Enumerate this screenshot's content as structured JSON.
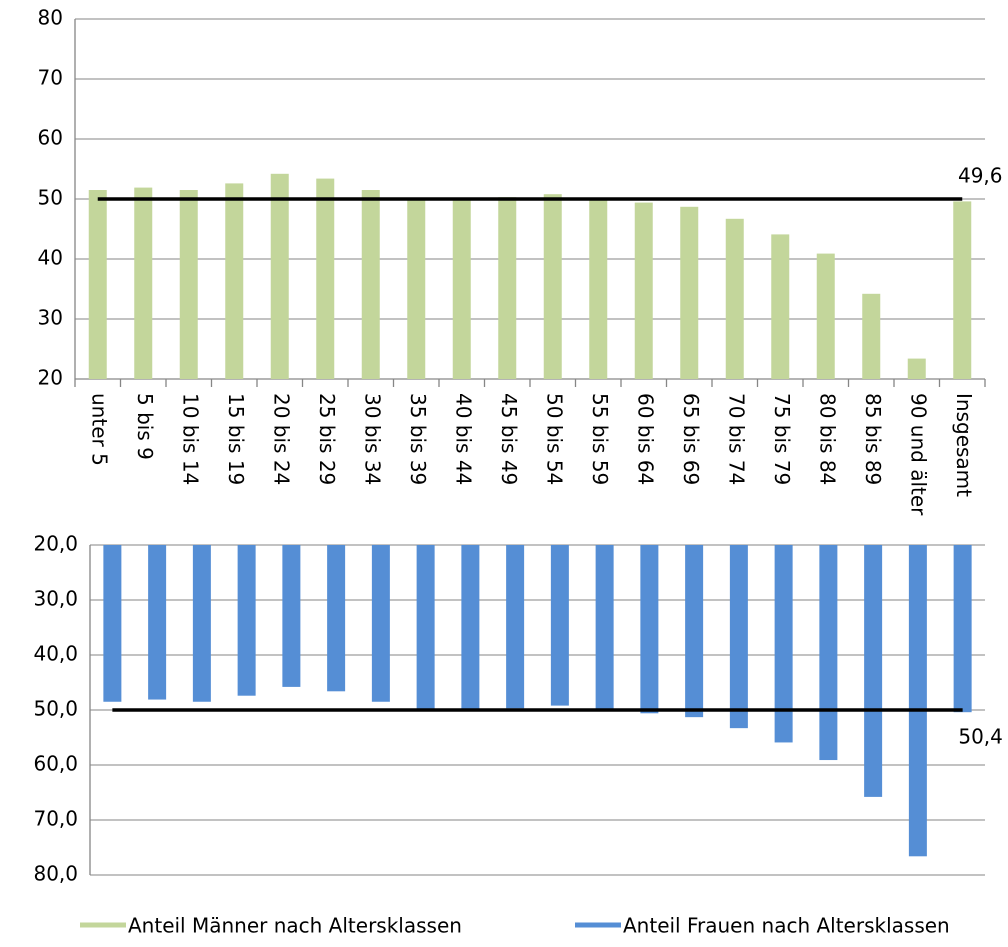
{
  "chart_data": {
    "type": "mirrored_bar",
    "categories": [
      "unter 5",
      "5 bis 9",
      "10 bis 14",
      "15 bis 19",
      "20 bis 24",
      "25 bis 29",
      "30 bis 34",
      "35 bis 39",
      "40 bis 44",
      "45 bis 49",
      "50 bis 54",
      "55 bis 59",
      "60 bis 64",
      "65 bis 69",
      "70 bis 74",
      "75 bis 79",
      "80 bis 84",
      "85 bis 89",
      "90 und älter",
      "Insgesamt"
    ],
    "series": [
      {
        "name": "Anteil Männer nach Altersklassen",
        "color": "#c3d69b",
        "values": [
          51.5,
          51.9,
          51.5,
          52.6,
          54.2,
          53.4,
          51.5,
          50.1,
          50.2,
          50.3,
          50.8,
          50.1,
          49.4,
          48.7,
          46.7,
          44.1,
          40.9,
          34.2,
          23.4,
          49.6
        ],
        "value_labels": [
          null,
          null,
          null,
          null,
          null,
          null,
          null,
          null,
          null,
          null,
          null,
          null,
          null,
          null,
          null,
          null,
          null,
          null,
          null,
          "49,6"
        ]
      },
      {
        "name": "Anteil Frauen nach Altersklassen",
        "color": "#558ed5",
        "axis": "y2",
        "values": [
          48.5,
          48.1,
          48.5,
          47.4,
          45.8,
          46.6,
          48.5,
          49.9,
          49.8,
          49.7,
          49.2,
          49.9,
          50.6,
          51.3,
          53.3,
          55.9,
          59.1,
          65.8,
          76.6,
          50.4
        ],
        "value_labels": [
          null,
          null,
          null,
          null,
          null,
          null,
          null,
          null,
          null,
          null,
          null,
          null,
          null,
          null,
          null,
          null,
          null,
          null,
          null,
          "50,4"
        ]
      }
    ],
    "ylim": [
      20,
      80
    ],
    "yticks": [
      20,
      30,
      40,
      50,
      60,
      70,
      80
    ],
    "y2lim": [
      20,
      80
    ],
    "y2_inverted": true,
    "y2ticks": [
      {
        "value": 20,
        "label": "20,0"
      },
      {
        "value": 30,
        "label": "30,0"
      },
      {
        "value": 40,
        "label": "40,0"
      },
      {
        "value": 50,
        "label": "50,0"
      },
      {
        "value": 60,
        "label": "60,0"
      },
      {
        "value": 70,
        "label": "70,0"
      },
      {
        "value": 80,
        "label": "80,0"
      }
    ],
    "reference_line": 50,
    "grid": true,
    "legend": "bottom"
  }
}
